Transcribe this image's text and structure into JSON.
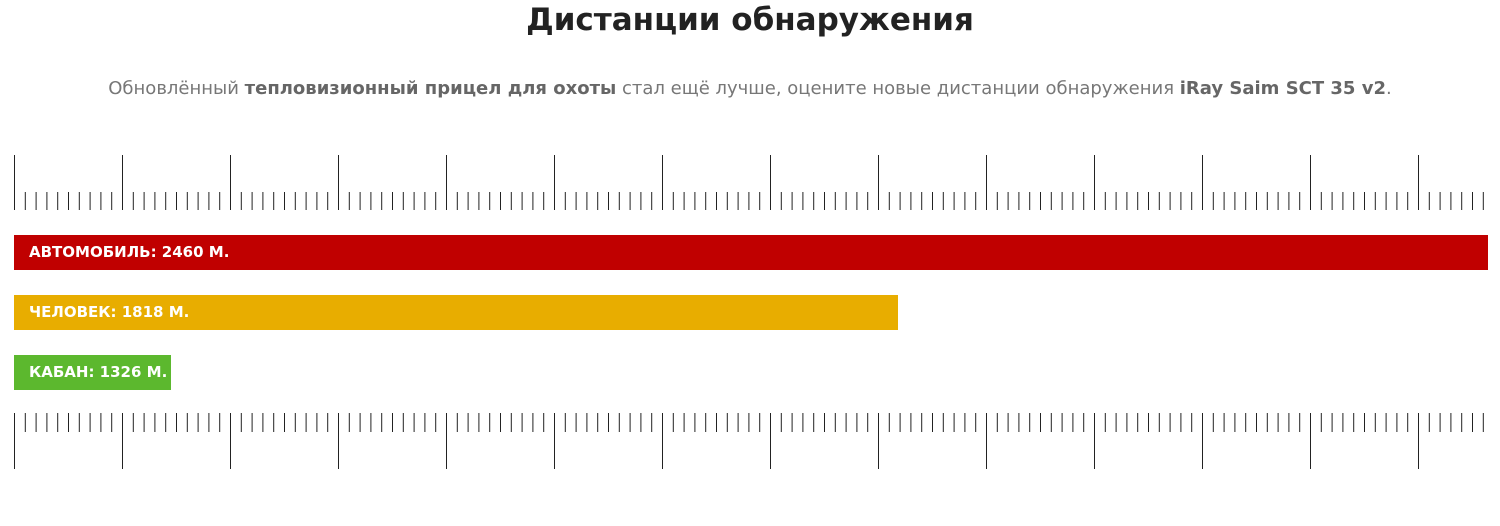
{
  "header": {
    "title": "Дистанции обнаружения",
    "subtitle": [
      {
        "text": "Обновлённый ",
        "bold": false
      },
      {
        "text": "тепловизионный прицел для охоты",
        "bold": true
      },
      {
        "text": " стал ещё лучше, оцените новые дистанции обнаружения ",
        "bold": false
      },
      {
        "text": "iRay Saim SCT 35 v2",
        "bold": true
      },
      {
        "text": ".",
        "bold": false
      }
    ]
  },
  "bars": [
    {
      "label": "АВТОМОБИЛЬ: 2460 М."
    },
    {
      "label": "ЧЕЛОВЕК: 1818 М."
    },
    {
      "label": "КАБАН: 1326 М."
    }
  ]
}
